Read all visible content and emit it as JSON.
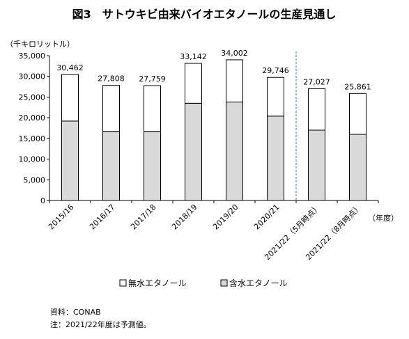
{
  "chart_data": {
    "type": "bar",
    "stacked": true,
    "title": "図3　サトウキビ由来バイオエタノールの生産見通し",
    "unit_label": "（千キロリットル）",
    "xlabel": "（年度）",
    "categories": [
      "2015/16",
      "2016/17",
      "2017/18",
      "2018/19",
      "2019/20",
      "2020/21",
      "2021/22（5月時点）",
      "2021/22（8月時点）"
    ],
    "series": [
      {
        "name": "含水エタノール",
        "color": "#d9d9d9",
        "values": [
          19200,
          16700,
          16700,
          23500,
          23800,
          20400,
          17000,
          16000
        ]
      },
      {
        "name": "無水エタノール",
        "color": "#ffffff",
        "values": [
          11262,
          11108,
          11059,
          9642,
          10202,
          9346,
          10027,
          9861
        ]
      }
    ],
    "totals": [
      30462,
      27808,
      27759,
      33142,
      34002,
      29746,
      27027,
      25861
    ],
    "total_labels": [
      "30,462",
      "27,808",
      "27,759",
      "33,142",
      "34,002",
      "29,746",
      "27,027",
      "25,861"
    ],
    "ylim": [
      0,
      35000
    ],
    "yticks": [
      0,
      5000,
      10000,
      15000,
      20000,
      25000,
      30000,
      35000
    ],
    "ytick_labels": [
      "0",
      "5,000",
      "10,000",
      "15,000",
      "20,000",
      "25,000",
      "30,000",
      "35,000"
    ],
    "grid": false,
    "legend_position": "bottom",
    "legend": [
      {
        "name": "無水エタノール",
        "color": "#ffffff"
      },
      {
        "name": "含水エタノール",
        "color": "#d9d9d9"
      }
    ],
    "divider": {
      "after_category": "2020/21",
      "style": "dashed",
      "color": "#4472c4"
    },
    "footnotes": [
      "資料：CONAB",
      "注：2021/22年度は予測値。"
    ]
  }
}
